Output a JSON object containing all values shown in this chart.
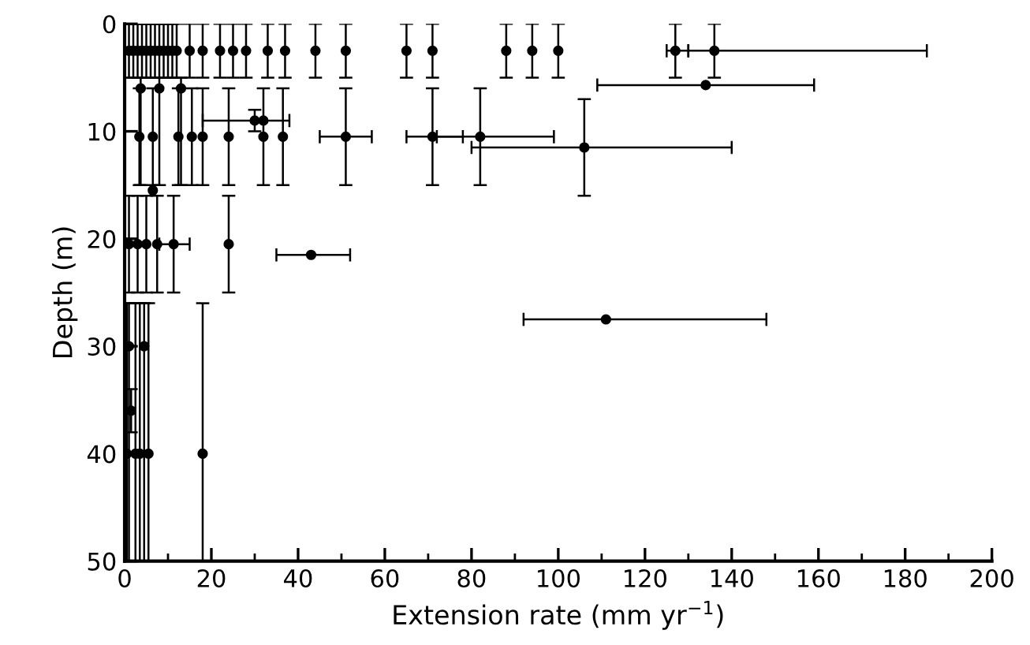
{
  "chart_data": {
    "type": "scatter",
    "xlabel": "Extension rate (mm yr$^{−1}$)",
    "ylabel": "Depth (m)",
    "xlim": [
      0,
      200
    ],
    "ylim": [
      50,
      0
    ],
    "xticks": [
      0,
      {
        "value": 10,
        "label": null
      },
      20,
      {
        "value": 30,
        "label": null
      },
      40,
      {
        "value": 50,
        "label": null
      },
      60,
      {
        "value": 70,
        "label": null
      },
      80,
      {
        "value": 90,
        "label": null
      },
      100,
      {
        "value": 110,
        "label": null
      },
      120,
      {
        "value": 130,
        "label": null
      },
      140,
      {
        "value": 150,
        "label": null
      },
      160,
      {
        "value": 170,
        "label": null
      },
      180,
      {
        "value": 190,
        "label": null
      },
      200
    ],
    "yticks": [
      0,
      10,
      20,
      30,
      40,
      50
    ],
    "grid": false,
    "legend": false,
    "marker": "circle",
    "series": [
      {
        "color": "#000000",
        "x": [
          1,
          2,
          3,
          4,
          5,
          6,
          7,
          8,
          9,
          10,
          11,
          12,
          15,
          18,
          22,
          25,
          28,
          33,
          37,
          44,
          51,
          65,
          71,
          88,
          94,
          100,
          127,
          136,
          134,
          3.7,
          8,
          13,
          3.4,
          6.5,
          12.4,
          15.5,
          18,
          24,
          32,
          36.5,
          51,
          71,
          82,
          106,
          30,
          32,
          6.5,
          1,
          3,
          5,
          7.5,
          11.3,
          24,
          43,
          111,
          1,
          4.5,
          1.5,
          0.5,
          2.5,
          3.5,
          5.5,
          18
        ],
        "values": [
          2.5,
          2.5,
          2.5,
          2.5,
          2.5,
          2.5,
          2.5,
          2.5,
          2.5,
          2.5,
          2.5,
          2.5,
          2.5,
          2.5,
          2.5,
          2.5,
          2.5,
          2.5,
          2.5,
          2.5,
          2.5,
          2.5,
          2.5,
          2.5,
          2.5,
          2.5,
          2.5,
          2.5,
          5.7,
          6,
          6,
          6,
          10.5,
          10.5,
          10.5,
          10.5,
          10.5,
          10.5,
          10.5,
          10.5,
          10.5,
          10.5,
          10.5,
          11.5,
          9,
          9,
          15.5,
          20.5,
          20.5,
          20.5,
          20.5,
          20.5,
          20.5,
          21.5,
          27.5,
          30,
          30,
          36,
          40,
          40,
          40,
          40,
          40
        ],
        "errors": [
          [
            0,
            5
          ],
          [
            0,
            5
          ],
          [
            0,
            5
          ],
          [
            0,
            5
          ],
          [
            0,
            5
          ],
          [
            0,
            5
          ],
          [
            0,
            5
          ],
          [
            0,
            5
          ],
          [
            0,
            5
          ],
          [
            0,
            5
          ],
          [
            0,
            5
          ],
          [
            0,
            5
          ],
          [
            0,
            5
          ],
          [
            0,
            5
          ],
          [
            0,
            5
          ],
          [
            0,
            5
          ],
          [
            0,
            5
          ],
          [
            0,
            5
          ],
          [
            0,
            5
          ],
          [
            0,
            5
          ],
          [
            0,
            5
          ],
          [
            0,
            5
          ],
          [
            0,
            5
          ],
          [
            0,
            5
          ],
          [
            0,
            5
          ],
          [
            0,
            5
          ],
          [
            0,
            5
          ],
          [
            0,
            5
          ],
          null,
          [
            5,
            15
          ],
          [
            5,
            15
          ],
          [
            5,
            15
          ],
          [
            6,
            15
          ],
          [
            6,
            15
          ],
          [
            6,
            15
          ],
          [
            6,
            15
          ],
          [
            6,
            15
          ],
          [
            6,
            15
          ],
          [
            6,
            15
          ],
          [
            6,
            15
          ],
          [
            6,
            15
          ],
          [
            6,
            15
          ],
          [
            6,
            15
          ],
          [
            7,
            16
          ],
          [
            8,
            10
          ],
          null,
          null,
          [
            16,
            25
          ],
          [
            16,
            25
          ],
          [
            16,
            25
          ],
          [
            16,
            25
          ],
          [
            16,
            25
          ],
          [
            16,
            25
          ],
          null,
          null,
          [
            26,
            50
          ],
          [
            26,
            50
          ],
          [
            34,
            38
          ],
          [
            26,
            50
          ],
          [
            26,
            50
          ],
          [
            26,
            50
          ],
          [
            26,
            50
          ],
          [
            26,
            50
          ]
        ],
        "xerrors": [
          null,
          null,
          null,
          null,
          null,
          null,
          null,
          null,
          null,
          null,
          null,
          null,
          null,
          null,
          null,
          null,
          null,
          null,
          null,
          null,
          null,
          null,
          null,
          null,
          null,
          null,
          [
            125,
            130
          ],
          [
            130,
            185
          ],
          [
            109,
            159
          ],
          null,
          null,
          null,
          null,
          null,
          null,
          null,
          null,
          null,
          null,
          null,
          [
            45,
            57
          ],
          [
            65,
            78
          ],
          [
            72,
            99
          ],
          [
            80,
            140
          ],
          [
            18,
            38
          ],
          null,
          null,
          null,
          null,
          null,
          null,
          [
            8,
            15
          ],
          null,
          [
            35,
            52
          ],
          [
            92,
            148
          ],
          null,
          null,
          null,
          null,
          null,
          null,
          null,
          null
        ]
      }
    ]
  }
}
